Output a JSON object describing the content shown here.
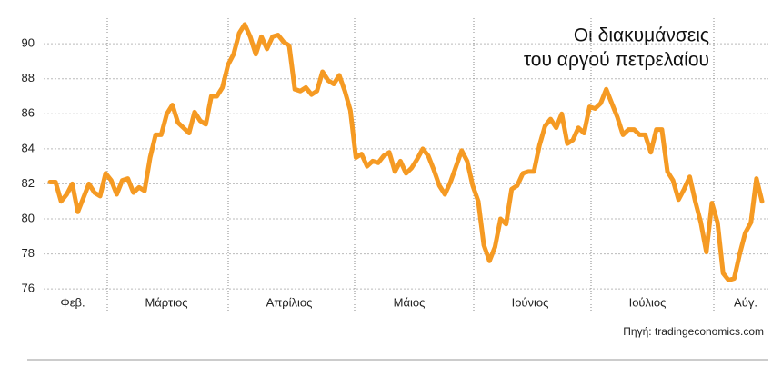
{
  "chart_data": {
    "type": "line",
    "title": [
      "Οι διακυμάνσεις",
      "του αργού πετρελαίου"
    ],
    "source": "Πηγή: tradingeconomics.com",
    "months": [
      "Φεβ.",
      "Μάρτιος",
      "Απρίλιος",
      "Μάιος",
      "Ιούνιος",
      "Ιούλιος",
      "Αύγ."
    ],
    "values": [
      82.1,
      82.1,
      81.0,
      81.4,
      82.0,
      80.4,
      81.2,
      82.0,
      81.5,
      81.3,
      82.6,
      82.2,
      81.4,
      82.2,
      82.3,
      81.5,
      81.8,
      81.6,
      83.5,
      84.8,
      84.8,
      86.0,
      86.5,
      85.5,
      85.2,
      84.9,
      86.1,
      85.6,
      85.4,
      87.0,
      87.0,
      87.5,
      88.8,
      89.4,
      90.6,
      91.1,
      90.4,
      89.4,
      90.4,
      89.7,
      90.4,
      90.5,
      90.1,
      89.9,
      87.4,
      87.3,
      87.5,
      87.1,
      87.3,
      88.4,
      87.9,
      87.7,
      88.2,
      87.3,
      86.2,
      83.5,
      83.7,
      83.0,
      83.3,
      83.2,
      83.6,
      83.8,
      82.7,
      83.3,
      82.6,
      82.9,
      83.4,
      84.0,
      83.6,
      82.8,
      81.9,
      81.4,
      82.1,
      83.0,
      83.9,
      83.3,
      81.9,
      81.0,
      78.5,
      77.6,
      78.4,
      80.0,
      79.7,
      81.7,
      81.9,
      82.6,
      82.7,
      82.7,
      84.2,
      85.3,
      85.7,
      85.2,
      86.0,
      84.3,
      84.5,
      85.2,
      84.9,
      86.4,
      86.3,
      86.6,
      87.4,
      86.6,
      85.8,
      84.8,
      85.1,
      85.1,
      84.8,
      84.8,
      83.8,
      85.1,
      85.1,
      82.7,
      82.2,
      81.1,
      81.7,
      82.4,
      81.0,
      79.8,
      78.1,
      80.9,
      79.8,
      76.9,
      76.5,
      76.6,
      78.0,
      79.2,
      79.8,
      82.3,
      81.0
    ],
    "color": "#f59a23",
    "ylim": [
      75.8,
      91.2
    ],
    "yticks": [
      76,
      78,
      80,
      82,
      84,
      86,
      88,
      90
    ],
    "grid": true
  }
}
